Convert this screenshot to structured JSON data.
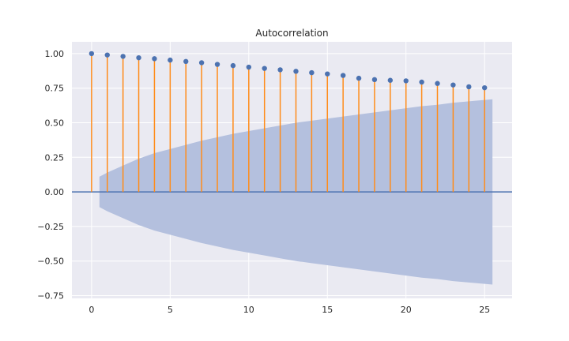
{
  "chart_data": {
    "type": "stem",
    "title": "Autocorrelation",
    "xlabel": "",
    "ylabel": "",
    "xlim": [
      -1.25,
      26.75
    ],
    "ylim": [
      -0.77,
      1.085
    ],
    "x_ticks": [
      0,
      5,
      10,
      15,
      20,
      25
    ],
    "x_tick_labels": [
      "0",
      "5",
      "10",
      "15",
      "20",
      "25"
    ],
    "y_ticks": [
      1.0,
      0.75,
      0.5,
      0.25,
      0.0,
      -0.25,
      -0.5,
      -0.75
    ],
    "y_tick_labels": [
      "1.00",
      "0.75",
      "0.50",
      "0.25",
      "0.00",
      "−0.25",
      "−0.50",
      "−0.75"
    ],
    "grid": true,
    "lags": [
      0,
      1,
      2,
      3,
      4,
      5,
      6,
      7,
      8,
      9,
      10,
      11,
      12,
      13,
      14,
      15,
      16,
      17,
      18,
      19,
      20,
      21,
      22,
      23,
      24,
      25
    ],
    "acf": [
      1.0,
      0.99,
      0.98,
      0.97,
      0.963,
      0.953,
      0.943,
      0.934,
      0.922,
      0.913,
      0.902,
      0.893,
      0.883,
      0.872,
      0.862,
      0.853,
      0.842,
      0.822,
      0.812,
      0.807,
      0.803,
      0.794,
      0.784,
      0.773,
      0.76,
      0.753
    ],
    "confidence_band": {
      "x": [
        0.5,
        1,
        2,
        3,
        4,
        5,
        6,
        7,
        8,
        9,
        10,
        11,
        12,
        13,
        14,
        15,
        16,
        17,
        18,
        19,
        20,
        21,
        22,
        23,
        24,
        25,
        25.5
      ],
      "upper": [
        0.11,
        0.14,
        0.19,
        0.24,
        0.28,
        0.31,
        0.34,
        0.37,
        0.395,
        0.42,
        0.44,
        0.46,
        0.48,
        0.5,
        0.515,
        0.53,
        0.545,
        0.56,
        0.575,
        0.59,
        0.605,
        0.62,
        0.63,
        0.645,
        0.655,
        0.665,
        0.67
      ]
    },
    "colors": {
      "background": "#eaeaf2",
      "grid": "#ffffff",
      "stem": "#ff8c1a",
      "marker": "#4c72b0",
      "zero_line": "#4c72b0",
      "band": "#b4c0de"
    }
  }
}
